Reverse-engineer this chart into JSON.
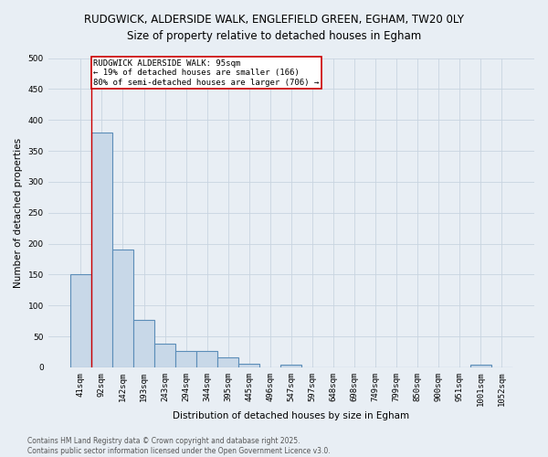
{
  "title_line1": "RUDGWICK, ALDERSIDE WALK, ENGLEFIELD GREEN, EGHAM, TW20 0LY",
  "title_line2": "Size of property relative to detached houses in Egham",
  "bar_labels": [
    "41sqm",
    "92sqm",
    "142sqm",
    "193sqm",
    "243sqm",
    "294sqm",
    "344sqm",
    "395sqm",
    "445sqm",
    "496sqm",
    "547sqm",
    "597sqm",
    "648sqm",
    "698sqm",
    "749sqm",
    "799sqm",
    "850sqm",
    "900sqm",
    "951sqm",
    "1001sqm",
    "1052sqm"
  ],
  "bar_values": [
    150,
    380,
    190,
    77,
    38,
    26,
    26,
    16,
    6,
    0,
    4,
    0,
    0,
    0,
    0,
    0,
    0,
    0,
    0,
    5,
    0
  ],
  "bar_color": "#c8d8e8",
  "bar_edge_color": "#5b8db8",
  "bar_edge_width": 0.8,
  "xlabel": "Distribution of detached houses by size in Egham",
  "ylabel": "Number of detached properties",
  "ylim": [
    0,
    500
  ],
  "yticks": [
    0,
    50,
    100,
    150,
    200,
    250,
    300,
    350,
    400,
    450,
    500
  ],
  "property_bin_index": 1,
  "vline_color": "#cc0000",
  "annotation_text": "RUDGWICK ALDERSIDE WALK: 95sqm\n← 19% of detached houses are smaller (166)\n80% of semi-detached houses are larger (706) →",
  "annotation_box_color": "#ffffff",
  "annotation_box_edge_color": "#cc0000",
  "grid_color": "#c8d4e0",
  "background_color": "#e8eef4",
  "footnote": "Contains HM Land Registry data © Crown copyright and database right 2025.\nContains public sector information licensed under the Open Government Licence v3.0.",
  "title_fontsize": 8.5,
  "axis_label_fontsize": 7.5,
  "tick_fontsize": 6.5,
  "annotation_fontsize": 6.5,
  "footnote_fontsize": 5.5
}
